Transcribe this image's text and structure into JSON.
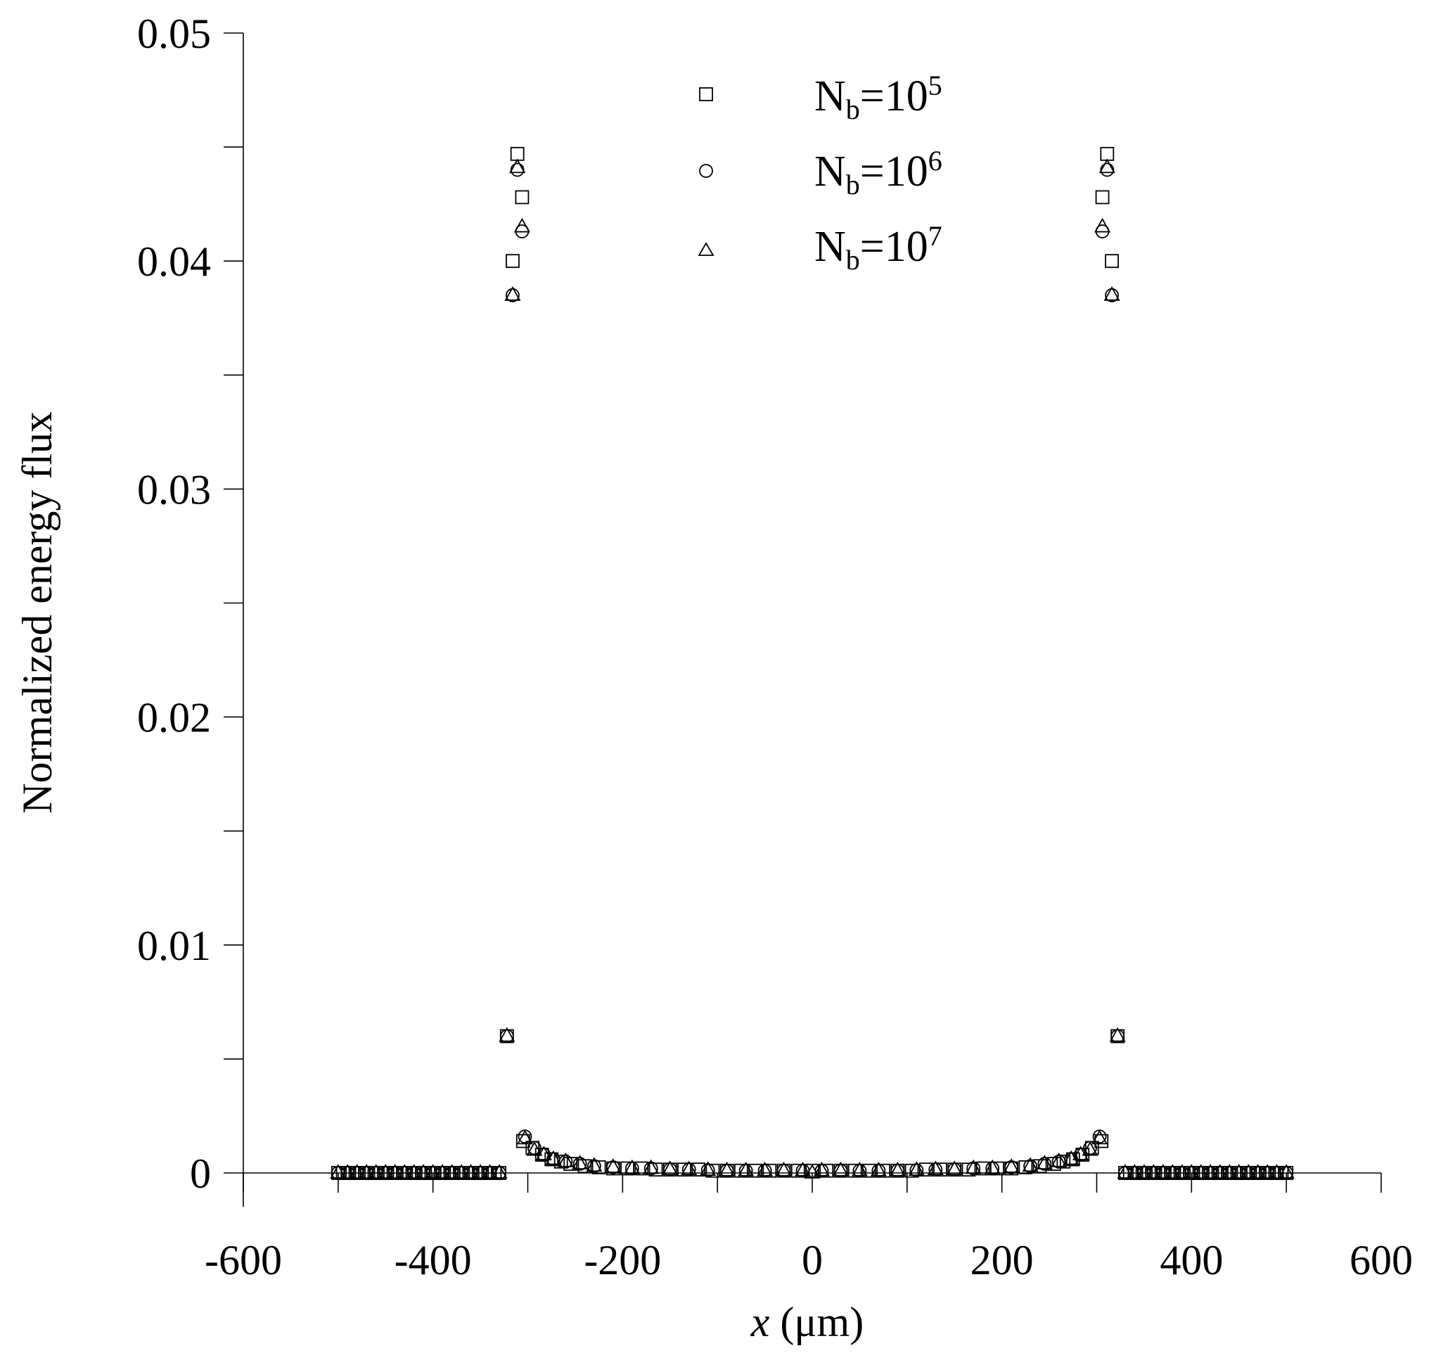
{
  "chart_data": {
    "type": "scatter",
    "title": "",
    "xlabel_italic": "x",
    "xlabel_rest": " (μm)",
    "ylabel": "Normalized energy flux",
    "xlim": [
      -600,
      600
    ],
    "ylim": [
      0,
      0.05
    ],
    "x_ticks": [
      "-600",
      "-400",
      "-200",
      "0",
      "200",
      "400",
      "600"
    ],
    "y_ticks": [
      "0",
      "0.01",
      "0.02",
      "0.03",
      "0.04",
      "0.05"
    ],
    "grid": false,
    "legend_position": "top-center",
    "series": [
      {
        "name_base": "N",
        "name_sub": "b",
        "name_mid": "=10",
        "name_sup": "5",
        "marker": "square",
        "points": [
          [
            -500,
            0
          ],
          [
            -495,
            0
          ],
          [
            -490,
            0
          ],
          [
            -485,
            0
          ],
          [
            -480,
            0
          ],
          [
            -475,
            0
          ],
          [
            -470,
            0
          ],
          [
            -465,
            0
          ],
          [
            -460,
            0
          ],
          [
            -455,
            0
          ],
          [
            -450,
            0
          ],
          [
            -445,
            0
          ],
          [
            -440,
            0
          ],
          [
            -435,
            0
          ],
          [
            -430,
            0
          ],
          [
            -425,
            0
          ],
          [
            -420,
            0
          ],
          [
            -415,
            0
          ],
          [
            -410,
            0
          ],
          [
            -405,
            0
          ],
          [
            -400,
            0
          ],
          [
            -395,
            0
          ],
          [
            -390,
            0
          ],
          [
            -385,
            0
          ],
          [
            -380,
            0
          ],
          [
            -375,
            0
          ],
          [
            -370,
            0
          ],
          [
            -365,
            0
          ],
          [
            -360,
            0
          ],
          [
            -355,
            0
          ],
          [
            -350,
            0
          ],
          [
            -345,
            0
          ],
          [
            -340,
            0
          ],
          [
            -335,
            0
          ],
          [
            -330,
            0
          ],
          [
            -322,
            0.006
          ],
          [
            -316,
            0.04
          ],
          [
            -311,
            0.0447
          ],
          [
            -306,
            0.0428
          ],
          [
            -305,
            0.0014
          ],
          [
            -295,
            0.0011
          ],
          [
            -285,
            0.0008
          ],
          [
            -275,
            0.0006
          ],
          [
            -265,
            0.0005
          ],
          [
            -255,
            0.0004
          ],
          [
            -240,
            0.0003
          ],
          [
            -225,
            0.00025
          ],
          [
            -210,
            0.0002
          ],
          [
            -195,
            0.0002
          ],
          [
            -180,
            0.0002
          ],
          [
            -165,
            0.00015
          ],
          [
            -150,
            0.00015
          ],
          [
            -135,
            0.00015
          ],
          [
            -120,
            0.00015
          ],
          [
            -105,
            0.0001
          ],
          [
            -90,
            0.0001
          ],
          [
            -75,
            0.0001
          ],
          [
            -60,
            0.0001
          ],
          [
            -45,
            0.0001
          ],
          [
            -30,
            0.0001
          ],
          [
            -15,
            0.0001
          ],
          [
            0,
            0.0001
          ],
          [
            15,
            0.0001
          ],
          [
            30,
            0.0001
          ],
          [
            45,
            0.0001
          ],
          [
            60,
            0.0001
          ],
          [
            75,
            0.0001
          ],
          [
            90,
            0.0001
          ],
          [
            105,
            0.0001
          ],
          [
            120,
            0.00015
          ],
          [
            135,
            0.00015
          ],
          [
            150,
            0.00015
          ],
          [
            165,
            0.00015
          ],
          [
            180,
            0.0002
          ],
          [
            195,
            0.0002
          ],
          [
            210,
            0.0002
          ],
          [
            225,
            0.00025
          ],
          [
            240,
            0.0003
          ],
          [
            255,
            0.0004
          ],
          [
            265,
            0.0005
          ],
          [
            275,
            0.0006
          ],
          [
            285,
            0.0008
          ],
          [
            295,
            0.0011
          ],
          [
            305,
            0.0014
          ],
          [
            306,
            0.0428
          ],
          [
            311,
            0.0447
          ],
          [
            316,
            0.04
          ],
          [
            322,
            0.006
          ],
          [
            330,
            0
          ],
          [
            335,
            0
          ],
          [
            340,
            0
          ],
          [
            345,
            0
          ],
          [
            350,
            0
          ],
          [
            355,
            0
          ],
          [
            360,
            0
          ],
          [
            365,
            0
          ],
          [
            370,
            0
          ],
          [
            375,
            0
          ],
          [
            380,
            0
          ],
          [
            385,
            0
          ],
          [
            390,
            0
          ],
          [
            395,
            0
          ],
          [
            400,
            0
          ],
          [
            405,
            0
          ],
          [
            410,
            0
          ],
          [
            415,
            0
          ],
          [
            420,
            0
          ],
          [
            425,
            0
          ],
          [
            430,
            0
          ],
          [
            435,
            0
          ],
          [
            440,
            0
          ],
          [
            445,
            0
          ],
          [
            450,
            0
          ],
          [
            455,
            0
          ],
          [
            460,
            0
          ],
          [
            465,
            0
          ],
          [
            470,
            0
          ],
          [
            475,
            0
          ],
          [
            480,
            0
          ],
          [
            485,
            0
          ],
          [
            490,
            0
          ],
          [
            495,
            0
          ],
          [
            500,
            0
          ]
        ]
      },
      {
        "name_base": "N",
        "name_sub": "b",
        "name_mid": "=10",
        "name_sup": "6",
        "marker": "circle",
        "points": [
          [
            -500,
            0
          ],
          [
            -490,
            0
          ],
          [
            -480,
            0
          ],
          [
            -470,
            0
          ],
          [
            -460,
            0
          ],
          [
            -450,
            0
          ],
          [
            -440,
            0
          ],
          [
            -430,
            0
          ],
          [
            -420,
            0
          ],
          [
            -410,
            0
          ],
          [
            -400,
            0
          ],
          [
            -390,
            0
          ],
          [
            -380,
            0
          ],
          [
            -370,
            0
          ],
          [
            -360,
            0
          ],
          [
            -350,
            0
          ],
          [
            -340,
            0
          ],
          [
            -330,
            0
          ],
          [
            -322,
            0.006
          ],
          [
            -316,
            0.0385
          ],
          [
            -311,
            0.044
          ],
          [
            -306,
            0.0413
          ],
          [
            -303,
            0.0016
          ],
          [
            -293,
            0.0011
          ],
          [
            -283,
            0.0008
          ],
          [
            -273,
            0.0006
          ],
          [
            -260,
            0.0005
          ],
          [
            -245,
            0.0004
          ],
          [
            -230,
            0.0003
          ],
          [
            -210,
            0.00025
          ],
          [
            -190,
            0.0002
          ],
          [
            -170,
            0.0002
          ],
          [
            -150,
            0.00015
          ],
          [
            -130,
            0.00015
          ],
          [
            -110,
            0.00012
          ],
          [
            -90,
            0.0001
          ],
          [
            -70,
            0.0001
          ],
          [
            -50,
            0.0001
          ],
          [
            -30,
            0.0001
          ],
          [
            -10,
            0.0001
          ],
          [
            10,
            0.0001
          ],
          [
            30,
            0.0001
          ],
          [
            50,
            0.0001
          ],
          [
            70,
            0.0001
          ],
          [
            90,
            0.0001
          ],
          [
            110,
            0.00012
          ],
          [
            130,
            0.00015
          ],
          [
            150,
            0.00015
          ],
          [
            170,
            0.0002
          ],
          [
            190,
            0.0002
          ],
          [
            210,
            0.00025
          ],
          [
            230,
            0.0003
          ],
          [
            245,
            0.0004
          ],
          [
            260,
            0.0005
          ],
          [
            273,
            0.0006
          ],
          [
            283,
            0.0008
          ],
          [
            293,
            0.0011
          ],
          [
            303,
            0.0016
          ],
          [
            306,
            0.0413
          ],
          [
            311,
            0.044
          ],
          [
            316,
            0.0385
          ],
          [
            322,
            0.006
          ],
          [
            330,
            0
          ],
          [
            340,
            0
          ],
          [
            350,
            0
          ],
          [
            360,
            0
          ],
          [
            370,
            0
          ],
          [
            380,
            0
          ],
          [
            390,
            0
          ],
          [
            400,
            0
          ],
          [
            410,
            0
          ],
          [
            420,
            0
          ],
          [
            430,
            0
          ],
          [
            440,
            0
          ],
          [
            450,
            0
          ],
          [
            460,
            0
          ],
          [
            470,
            0
          ],
          [
            480,
            0
          ],
          [
            490,
            0
          ],
          [
            500,
            0
          ]
        ]
      },
      {
        "name_base": "N",
        "name_sub": "b",
        "name_mid": "=10",
        "name_sup": "7",
        "marker": "triangle",
        "points": [
          [
            -500,
            0
          ],
          [
            -490,
            0
          ],
          [
            -480,
            0
          ],
          [
            -470,
            0
          ],
          [
            -460,
            0
          ],
          [
            -450,
            0
          ],
          [
            -440,
            0
          ],
          [
            -430,
            0
          ],
          [
            -420,
            0
          ],
          [
            -410,
            0
          ],
          [
            -400,
            0
          ],
          [
            -390,
            0
          ],
          [
            -380,
            0
          ],
          [
            -370,
            0
          ],
          [
            -360,
            0
          ],
          [
            -350,
            0
          ],
          [
            -340,
            0
          ],
          [
            -330,
            0
          ],
          [
            -322,
            0.006
          ],
          [
            -316,
            0.0385
          ],
          [
            -311,
            0.0441
          ],
          [
            -306,
            0.0415
          ],
          [
            -303,
            0.0015
          ],
          [
            -293,
            0.001
          ],
          [
            -283,
            0.0008
          ],
          [
            -273,
            0.0006
          ],
          [
            -260,
            0.0005
          ],
          [
            -245,
            0.0004
          ],
          [
            -230,
            0.0003
          ],
          [
            -210,
            0.00025
          ],
          [
            -190,
            0.0002
          ],
          [
            -170,
            0.0002
          ],
          [
            -150,
            0.00015
          ],
          [
            -130,
            0.00015
          ],
          [
            -110,
            0.00012
          ],
          [
            -90,
            0.0001
          ],
          [
            -70,
            0.0001
          ],
          [
            -50,
            0.0001
          ],
          [
            -30,
            0.0001
          ],
          [
            -10,
            0.0001
          ],
          [
            0,
            0
          ],
          [
            10,
            0.0001
          ],
          [
            30,
            0.0001
          ],
          [
            50,
            0.0001
          ],
          [
            70,
            0.0001
          ],
          [
            90,
            0.0001
          ],
          [
            110,
            0.00012
          ],
          [
            130,
            0.00015
          ],
          [
            150,
            0.00015
          ],
          [
            170,
            0.0002
          ],
          [
            190,
            0.0002
          ],
          [
            210,
            0.00025
          ],
          [
            230,
            0.0003
          ],
          [
            245,
            0.0004
          ],
          [
            260,
            0.0005
          ],
          [
            273,
            0.0006
          ],
          [
            283,
            0.0008
          ],
          [
            293,
            0.001
          ],
          [
            303,
            0.0015
          ],
          [
            306,
            0.0415
          ],
          [
            311,
            0.0441
          ],
          [
            316,
            0.0385
          ],
          [
            322,
            0.006
          ],
          [
            330,
            0
          ],
          [
            340,
            0
          ],
          [
            350,
            0
          ],
          [
            360,
            0
          ],
          [
            370,
            0
          ],
          [
            380,
            0
          ],
          [
            390,
            0
          ],
          [
            400,
            0
          ],
          [
            410,
            0
          ],
          [
            420,
            0
          ],
          [
            430,
            0
          ],
          [
            440,
            0
          ],
          [
            450,
            0
          ],
          [
            460,
            0
          ],
          [
            470,
            0
          ],
          [
            480,
            0
          ],
          [
            490,
            0
          ],
          [
            500,
            0
          ]
        ]
      }
    ]
  }
}
